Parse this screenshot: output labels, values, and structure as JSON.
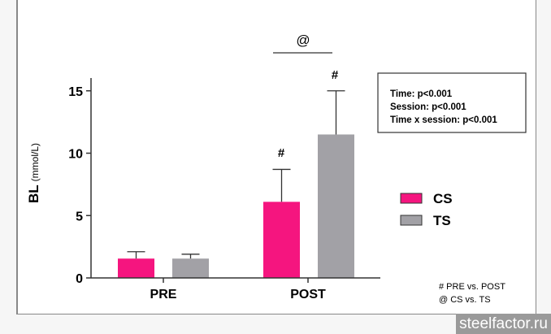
{
  "chart_data": {
    "type": "bar",
    "categories": [
      "PRE",
      "POST"
    ],
    "series": [
      {
        "name": "CS",
        "color": "#f5157f",
        "values": [
          1.55,
          6.1
        ],
        "error_upper": [
          2.1,
          8.7
        ]
      },
      {
        "name": "TS",
        "color": "#a2a1a6",
        "values": [
          1.55,
          11.5
        ],
        "error_upper": [
          1.9,
          15.0
        ]
      }
    ],
    "ylabel_main": "BL",
    "ylabel_unit": "(mmol/L)",
    "ylim": [
      0,
      16
    ],
    "yticks": [
      0,
      5,
      10,
      15
    ],
    "legend_placement": "right",
    "annotations": {
      "pre_post_markers": [
        "#",
        "#"
      ],
      "between_groups_marker": "@"
    },
    "stats_box": [
      "Time: p<0.001",
      "Session: p<0.001",
      "Time x session: p<0.001"
    ],
    "footnotes": [
      "# PRE vs. POST",
      "@ CS vs. TS"
    ]
  },
  "watermark": "steelfactor.ru"
}
